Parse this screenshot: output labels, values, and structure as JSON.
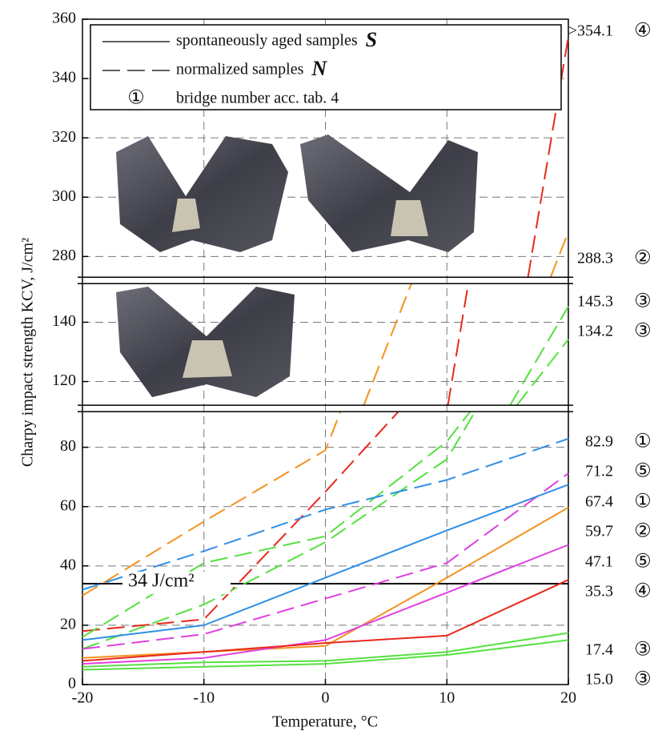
{
  "chart_data": {
    "type": "line",
    "xlabel": "Temperature, °C",
    "ylabel": "Charpy impact strength KCV, J/cm²",
    "x": [
      -20,
      -10,
      0,
      10,
      20
    ],
    "xlim": [
      -20,
      20
    ],
    "xticks": [
      -20,
      -10,
      0,
      10,
      20
    ],
    "ylim": [
      0,
      360
    ],
    "axis_breaks": [
      [
        92,
        112
      ],
      [
        153,
        273
      ]
    ],
    "yticks": [
      0,
      20,
      40,
      60,
      80,
      120,
      140,
      280,
      300,
      320,
      340,
      360
    ],
    "grid": true,
    "legend": [
      {
        "label": "spontaneously aged samples",
        "symbol": "S",
        "style": "solid"
      },
      {
        "label": "normalized samples",
        "symbol": "N",
        "style": "dashed"
      },
      {
        "label": "bridge number acc. tab. 4",
        "symbol": "①"
      }
    ],
    "reference": {
      "value": 34,
      "label": "34 J/cm²"
    },
    "series": [
      {
        "style": "dashed",
        "color": "#e8291c",
        "values": [
          18,
          22,
          65,
          110,
          354.1
        ],
        "value_labels": [
          null,
          null,
          null,
          null,
          ">354.1"
        ],
        "bridge": "④"
      },
      {
        "style": "dashed",
        "color": "#f39321",
        "values": [
          30,
          55,
          79,
          null,
          288.3
        ],
        "bridge": "②"
      },
      {
        "style": "dashed",
        "color": "#55e040",
        "values": [
          12,
          27,
          48,
          76,
          145.3
        ],
        "bridge": "③"
      },
      {
        "style": "dashed",
        "color": "#55e040",
        "values": [
          16,
          41,
          50,
          82,
          134.2
        ],
        "bridge": "③"
      },
      {
        "style": "dashed",
        "color": "#2f8fe6",
        "values": [
          32,
          45,
          59,
          69,
          82.9
        ],
        "bridge": "①"
      },
      {
        "style": "dashed",
        "color": "#e040e0",
        "values": [
          12,
          17,
          29,
          41,
          71.2
        ],
        "bridge": "⑤"
      },
      {
        "style": "solid",
        "color": "#2f8fe6",
        "values": [
          15,
          20,
          36,
          52,
          67.4
        ],
        "bridge": "①"
      },
      {
        "style": "solid",
        "color": "#f39321",
        "values": [
          9,
          11,
          13,
          36,
          59.7
        ],
        "bridge": "②"
      },
      {
        "style": "solid",
        "color": "#e040e0",
        "values": [
          7,
          9,
          15,
          31,
          47.1
        ],
        "bridge": "⑤"
      },
      {
        "style": "solid",
        "color": "#e8291c",
        "values": [
          8,
          11,
          14,
          16.5,
          35.3
        ],
        "bridge": "④"
      },
      {
        "style": "solid",
        "color": "#55e040",
        "values": [
          6,
          7.5,
          8,
          11,
          17.4
        ],
        "bridge": "③"
      },
      {
        "style": "solid",
        "color": "#55e040",
        "values": [
          5,
          6,
          7,
          10,
          15
        ],
        "value_labels": [
          null,
          null,
          null,
          null,
          "15.0"
        ],
        "bridge": "③"
      }
    ]
  }
}
